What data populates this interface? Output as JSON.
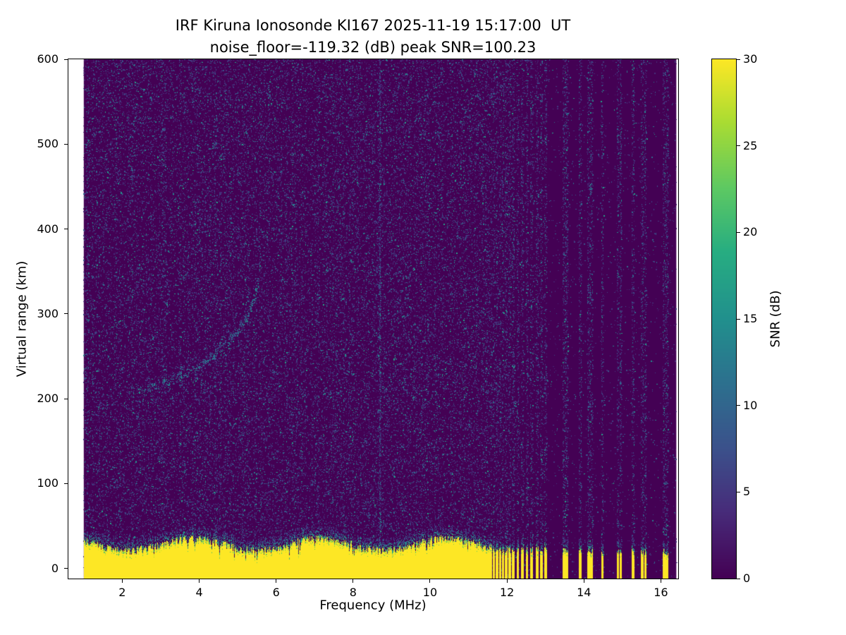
{
  "figure": {
    "title_line1": "IRF Kiruna Ionosonde KI167 2025-11-19 15:17:00  UT",
    "title_line2": "noise_floor=-119.32 (dB) peak SNR=100.23"
  },
  "chart_data": {
    "type": "heatmap",
    "title": "IRF Kiruna Ionosonde KI167 2025-11-19 15:17:00  UT",
    "subtitle": "noise_floor=-119.32 (dB) peak SNR=100.23",
    "xlabel": "Frequency (MHz)",
    "ylabel": "Virtual range (km)",
    "xlim": [
      0.6,
      16.45
    ],
    "ylim": [
      -12,
      600
    ],
    "xticks": [
      2,
      4,
      6,
      8,
      10,
      12,
      14,
      16
    ],
    "yticks": [
      0,
      100,
      200,
      300,
      400,
      500,
      600
    ],
    "freq_range_mhz": [
      1.0,
      16.4
    ],
    "noise_floor_db": -119.32,
    "peak_snr_db": 100.23,
    "grid": false,
    "colorbar": {
      "label": "SNR (dB)",
      "min": 0,
      "max": 30,
      "ticks": [
        0,
        5,
        10,
        15,
        20,
        25,
        30
      ],
      "colormap": "viridis"
    },
    "ground_clutter": {
      "snr_db": 30,
      "height_km_max": 45,
      "continuous_range_mhz": [
        1.0,
        11.62
      ],
      "intermittent_columns_mhz": [
        11.66,
        11.74,
        11.82,
        11.9,
        11.98,
        12.07,
        12.16,
        12.28,
        12.4,
        12.52,
        12.64,
        12.78,
        12.9,
        13.0,
        13.48,
        13.56,
        13.9,
        14.12,
        14.2,
        14.48,
        14.88,
        14.96,
        15.28,
        15.52,
        15.6,
        16.08,
        16.16
      ]
    },
    "echo_trace": {
      "snr_db": 12,
      "points": [
        [
          2.25,
          208
        ],
        [
          2.6,
          211
        ],
        [
          2.9,
          215
        ],
        [
          3.2,
          220
        ],
        [
          3.5,
          226
        ],
        [
          3.8,
          233
        ],
        [
          4.1,
          241
        ],
        [
          4.4,
          251
        ],
        [
          4.7,
          263
        ],
        [
          5.0,
          278
        ],
        [
          5.2,
          292
        ],
        [
          5.35,
          308
        ],
        [
          5.45,
          322
        ],
        [
          5.55,
          340
        ]
      ]
    },
    "secondary_echo_trace": {
      "snr_db": 9,
      "points": [
        [
          3.3,
          224
        ],
        [
          3.7,
          232
        ],
        [
          4.1,
          243
        ],
        [
          4.5,
          257
        ],
        [
          4.8,
          270
        ],
        [
          5.05,
          284
        ],
        [
          5.2,
          296
        ]
      ]
    },
    "interference_lines_mhz": [
      8.7
    ],
    "noise_speckle": {
      "snr_db_typical": [
        3,
        15
      ],
      "density": 0.1
    }
  },
  "colors": {
    "background": "#ffffff",
    "viridis_min": "#440154",
    "viridis_max": "#fde725",
    "text": "#000000"
  }
}
